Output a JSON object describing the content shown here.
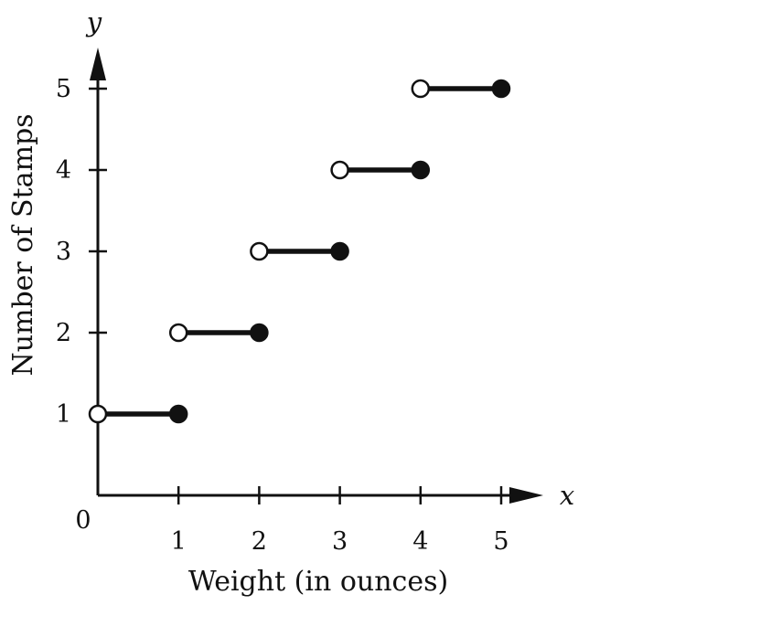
{
  "chart_data": {
    "type": "line",
    "variant": "step",
    "xlabel": "Weight (in ounces)",
    "ylabel": "Number of Stamps",
    "x_axis_letter": "x",
    "y_axis_letter": "y",
    "origin_label": "0",
    "xlim": [
      0,
      5
    ],
    "ylim": [
      0,
      5
    ],
    "x_ticks": [
      1,
      2,
      3,
      4,
      5
    ],
    "y_ticks": [
      1,
      2,
      3,
      4,
      5
    ],
    "grid": false,
    "segments": [
      {
        "x_start": 0,
        "x_end": 1,
        "y": 1,
        "open_start": true,
        "closed_end": true
      },
      {
        "x_start": 1,
        "x_end": 2,
        "y": 2,
        "open_start": true,
        "closed_end": true
      },
      {
        "x_start": 2,
        "x_end": 3,
        "y": 3,
        "open_start": true,
        "closed_end": true
      },
      {
        "x_start": 3,
        "x_end": 4,
        "y": 4,
        "open_start": true,
        "closed_end": true
      },
      {
        "x_start": 4,
        "x_end": 5,
        "y": 5,
        "open_start": true,
        "closed_end": true
      }
    ],
    "colors": {
      "ink": "#111111",
      "background": "#ffffff"
    }
  }
}
